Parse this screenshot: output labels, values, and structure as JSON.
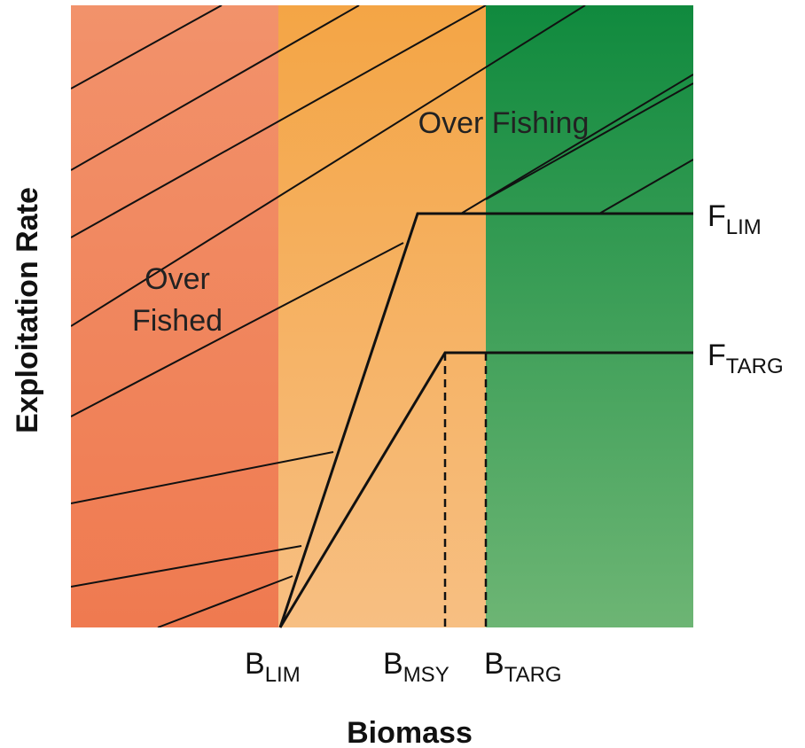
{
  "regions": {
    "overfished": {
      "line1": "Over",
      "line2": "Fished"
    },
    "overfishing": {
      "label": "Over Fishing"
    }
  },
  "reference_points": {
    "b_lim": {
      "main": "B",
      "sub": "LIM"
    },
    "b_msy": {
      "main": "B",
      "sub": "MSY"
    },
    "b_targ": {
      "main": "B",
      "sub": "TARG"
    },
    "f_lim": {
      "main": "F",
      "sub": "LIM"
    },
    "f_targ": {
      "main": "F",
      "sub": "TARG"
    }
  },
  "axes": {
    "x_title": "Biomass",
    "y_title": "Exploitation Rate"
  },
  "colors": {
    "overfished_top": "#F2926B",
    "overfished_bottom": "#EF7A50",
    "caution_top": "#F4A545",
    "caution_bottom": "#F7BF82",
    "healthy_top": "#108A3E",
    "healthy_bottom": "#6DB574"
  }
}
